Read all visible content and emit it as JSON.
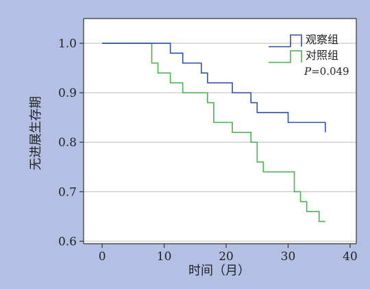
{
  "chart_data": {
    "type": "line",
    "title": "",
    "xlabel": "时间（月）",
    "ylabel": "无进展生存期",
    "xlim": [
      -3,
      41
    ],
    "ylim": [
      0.595,
      1.05
    ],
    "x_ticks": [
      0,
      10,
      20,
      30,
      40
    ],
    "y_ticks": [
      0.6,
      0.7,
      0.8,
      0.9,
      1.0
    ],
    "y_tick_labels": [
      "0.6",
      "0.7",
      "0.8",
      "0.9",
      "1.0"
    ],
    "grid": "horizontal",
    "legend_position": "top-right",
    "annotation": "P=0.049",
    "annotation_prefix": "P",
    "annotation_rest": "=0.049",
    "series": [
      {
        "name": "观察组",
        "color": "#2f4fa6",
        "step": "post",
        "x": [
          0,
          11,
          13,
          16,
          17,
          21,
          24,
          25,
          27,
          30,
          36
        ],
        "y": [
          1.0,
          0.98,
          0.96,
          0.94,
          0.92,
          0.9,
          0.88,
          0.86,
          0.86,
          0.84,
          0.82
        ]
      },
      {
        "name": "对照组",
        "color": "#48b24e",
        "step": "post",
        "x": [
          0,
          8,
          9,
          11,
          13,
          16,
          17,
          18,
          21,
          24,
          25,
          26,
          31,
          32,
          33,
          35,
          36
        ],
        "y": [
          1.0,
          0.96,
          0.94,
          0.92,
          0.9,
          0.9,
          0.88,
          0.84,
          0.82,
          0.8,
          0.76,
          0.74,
          0.7,
          0.68,
          0.66,
          0.64,
          0.64
        ]
      }
    ]
  }
}
